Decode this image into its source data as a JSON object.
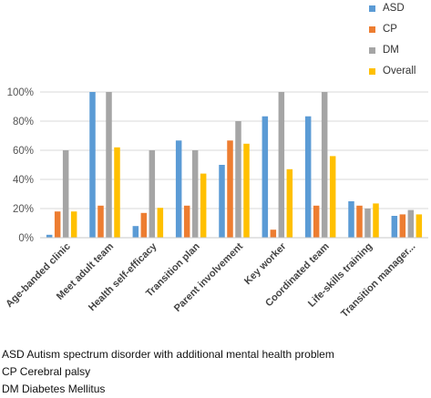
{
  "chart_data": {
    "type": "bar",
    "categories": [
      "Age-banded clinic",
      "Meet adult team",
      "Health self-efficacy",
      "Transition plan",
      "Parent involvement",
      "Key worker",
      "Coordinated team",
      "Life-skills training",
      "Transition manager..."
    ],
    "series": [
      {
        "name": "ASD",
        "color": "#5b9bd5",
        "values": [
          2,
          100,
          8,
          66.7,
          50,
          83.3,
          83.3,
          25,
          15
        ]
      },
      {
        "name": "CP",
        "color": "#ed7d31",
        "values": [
          18,
          22,
          17,
          22,
          66.7,
          5.5,
          22,
          22,
          16
        ]
      },
      {
        "name": "DM",
        "color": "#a5a5a5",
        "values": [
          60,
          100,
          60,
          60,
          80,
          100,
          100,
          20,
          19
        ]
      },
      {
        "name": "Overall",
        "color": "#ffc000",
        "values": [
          18,
          62,
          20.5,
          44,
          64.5,
          47,
          56,
          23.5,
          16
        ]
      }
    ],
    "ylim": [
      0,
      100
    ],
    "yticks": [
      "0%",
      "20%",
      "40%",
      "60%",
      "80%",
      "100%"
    ],
    "grid": true,
    "legend_position": "top-right",
    "xlabel": "",
    "ylabel": ""
  },
  "footnotes": [
    "ASD Autism spectrum disorder with additional mental health problem",
    "CP Cerebral palsy",
    "DM Diabetes Mellitus"
  ]
}
